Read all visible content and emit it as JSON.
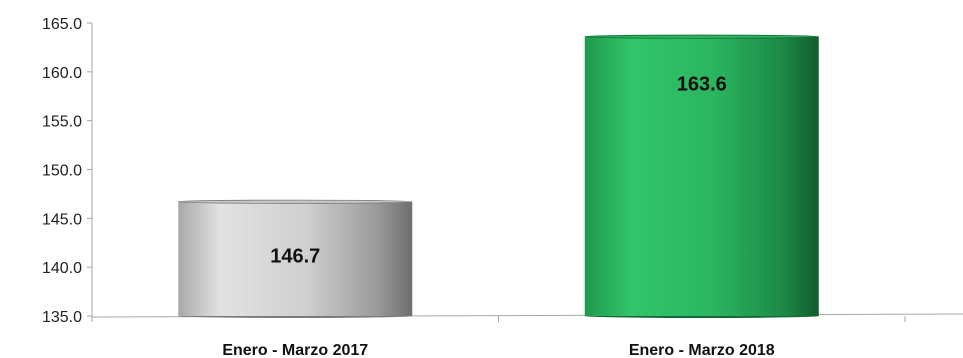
{
  "chart_data": {
    "type": "bar",
    "title": "",
    "xlabel": "",
    "ylabel": "",
    "categories": [
      "Enero - Marzo 2017",
      "Enero - Marzo 2018"
    ],
    "values": [
      146.7,
      163.6
    ],
    "value_labels": [
      "146.7",
      "163.6"
    ],
    "ylim": [
      135.0,
      165.0
    ],
    "yticks": [
      135.0,
      140.0,
      145.0,
      150.0,
      155.0,
      160.0,
      165.0
    ],
    "ytick_labels": [
      "135.0",
      "140.0",
      "145.0",
      "150.0",
      "155.0",
      "160.0",
      "165.0"
    ],
    "grid": false,
    "legend": "none",
    "colors": {
      "bars": [
        "#c8c8c8",
        "#2bb560"
      ],
      "bars_dark": [
        "#7a7a7a",
        "#146a34"
      ],
      "axis": "#a6a6a6"
    }
  }
}
